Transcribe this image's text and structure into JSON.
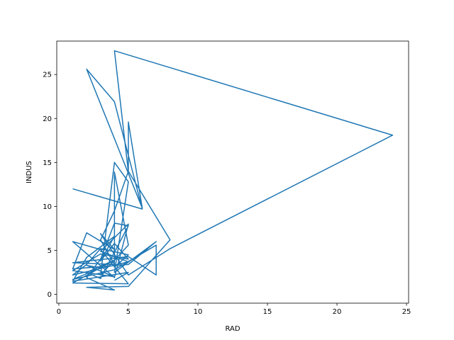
{
  "chart_data": {
    "type": "line",
    "xlabel": "RAD",
    "ylabel": "INDUS",
    "xlim": [
      -0.15,
      25.15
    ],
    "ylim": [
      -1.0,
      28.8
    ],
    "xticks": [
      0,
      5,
      10,
      15,
      20,
      25
    ],
    "yticks": [
      0,
      5,
      10,
      15,
      20,
      25
    ],
    "grid": false,
    "series": [
      {
        "color": "#1f77b4",
        "points": [
          [
            1,
            12.0
          ],
          [
            6,
            9.7
          ],
          [
            4,
            21.9
          ],
          [
            2,
            25.6
          ],
          [
            6,
            9.8
          ],
          [
            5,
            19.6
          ],
          [
            5,
            13.9
          ],
          [
            4,
            27.7
          ],
          [
            24,
            18.1
          ],
          [
            8,
            5.2
          ],
          [
            5,
            2.2
          ],
          [
            3,
            6.9
          ],
          [
            4,
            5.1
          ],
          [
            2,
            7.0
          ],
          [
            1,
            2.9
          ],
          [
            5,
            3.4
          ],
          [
            7,
            6.0
          ],
          [
            4,
            2.5
          ],
          [
            5,
            12.8
          ],
          [
            4,
            15.0
          ],
          [
            3,
            2.2
          ],
          [
            5,
            5.6
          ],
          [
            4,
            13.9
          ],
          [
            4,
            3.1
          ],
          [
            5,
            4.5
          ],
          [
            3,
            5.2
          ],
          [
            2,
            3.4
          ],
          [
            1,
            2.2
          ],
          [
            5,
            3.7
          ],
          [
            3,
            4.9
          ],
          [
            5,
            8.0
          ],
          [
            4,
            1.9
          ],
          [
            1,
            6.0
          ],
          [
            3,
            5.1
          ],
          [
            5,
            1.2
          ],
          [
            1,
            1.3
          ],
          [
            4,
            3.9
          ],
          [
            2,
            2.5
          ],
          [
            3,
            1.8
          ],
          [
            5,
            7.8
          ],
          [
            4,
            8.1
          ],
          [
            3,
            4.0
          ],
          [
            2,
            1.9
          ],
          [
            4,
            0.5
          ],
          [
            2,
            0.8
          ],
          [
            5,
            0.9
          ],
          [
            8,
            6.2
          ],
          [
            5,
            14.0
          ],
          [
            4,
            9.5
          ],
          [
            3,
            6.2
          ],
          [
            4,
            3.4
          ],
          [
            1,
            3.6
          ],
          [
            5,
            4.3
          ],
          [
            7,
            2.2
          ],
          [
            7,
            5.6
          ],
          [
            4,
            2.8
          ],
          [
            1,
            1.7
          ],
          [
            3,
            3.0
          ],
          [
            2,
            3.3
          ],
          [
            4,
            2.0
          ],
          [
            1,
            2.7
          ],
          [
            3,
            4.6
          ],
          [
            5,
            4.0
          ],
          [
            4,
            5.8
          ],
          [
            3,
            3.8
          ],
          [
            4,
            6.6
          ],
          [
            2,
            4.2
          ],
          [
            1,
            1.5
          ],
          [
            5,
            2.5
          ],
          [
            4,
            1.6
          ]
        ]
      }
    ]
  }
}
